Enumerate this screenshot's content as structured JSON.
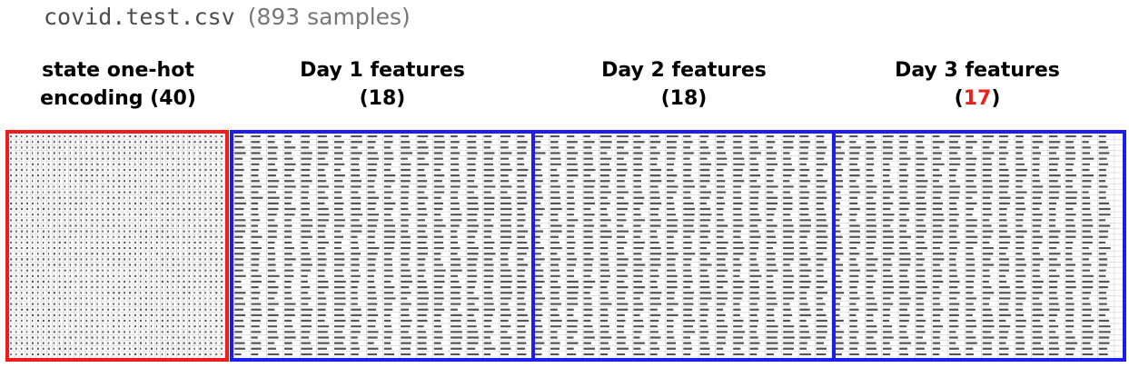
{
  "header": {
    "file_name": "covid.test.csv",
    "sample_count": "(893 samples)"
  },
  "sections": [
    {
      "line1": "state one-hot",
      "line2": "encoding (40)"
    },
    {
      "line1": "Day 1 features",
      "line2": "(18)"
    },
    {
      "line1": "Day 2 features",
      "line2": "(18)"
    },
    {
      "line1": "Day 3 features",
      "line2_prefix": "(",
      "line2_count": "17",
      "line2_suffix": ")"
    }
  ],
  "colors": {
    "one_hot_border": "#ee1c1c",
    "feature_border": "#1d1df0",
    "highlight_count": "#e8221b"
  }
}
